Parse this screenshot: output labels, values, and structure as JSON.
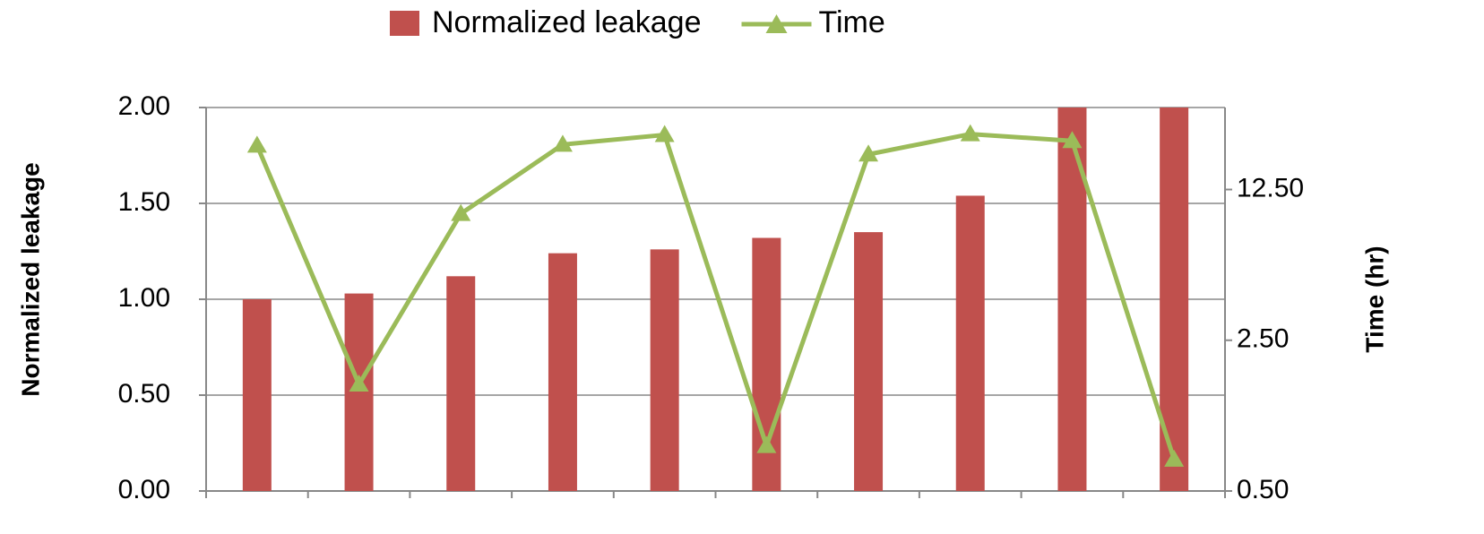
{
  "chart_data": {
    "type": "bar_line",
    "categories": [
      null,
      null,
      null,
      null,
      null,
      null,
      null,
      null,
      null,
      null
    ],
    "series": [
      {
        "name": "Normalized leakage",
        "type": "bar",
        "color": "#c0504d",
        "axis": "y",
        "values": [
          1.0,
          1.03,
          1.12,
          1.24,
          1.26,
          1.32,
          1.35,
          1.54,
          2.0,
          2.0
        ]
      },
      {
        "name": "Time",
        "type": "line",
        "color": "#9bbb59",
        "axis": "y2",
        "marker": "triangle",
        "values": [
          20.0,
          1.56,
          9.65,
          20.2,
          22.4,
          0.81,
          18.2,
          22.6,
          21.0,
          0.7
        ]
      }
    ],
    "ylabel": "Normalized leakage",
    "y2label": "Time (hr)",
    "ylim": [
      0,
      2
    ],
    "yticks": [
      {
        "value": 0,
        "label": "0.00"
      },
      {
        "value": 0.5,
        "label": "0.50"
      },
      {
        "value": 1,
        "label": "1.00"
      },
      {
        "value": 1.5,
        "label": "1.50"
      },
      {
        "value": 2,
        "label": "2.00"
      }
    ],
    "y2lim": [
      0.5,
      30
    ],
    "y2ticks": [
      {
        "value": 0.5,
        "label": "0.50"
      },
      {
        "value": 2.5,
        "label": "2.50"
      },
      {
        "value": 12.5,
        "label": "12.50"
      }
    ],
    "y2scale": "log",
    "grid": true,
    "legend": "top"
  }
}
